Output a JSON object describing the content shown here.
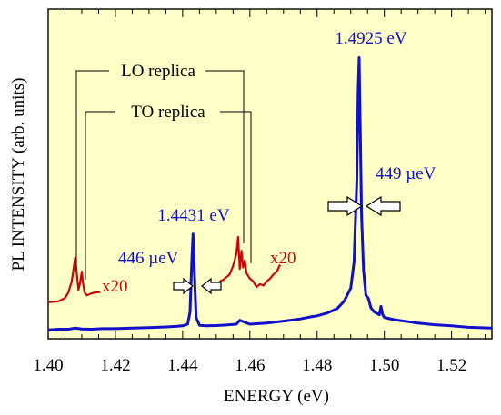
{
  "chart_data": {
    "type": "line",
    "xlabel": "ENERGY (eV)",
    "ylabel": "PL INTENSITY  (arb. units)",
    "xlim": [
      1.4,
      1.532
    ],
    "ylim": [
      0,
      1.0
    ],
    "xticks": [
      "1.40",
      "1.42",
      "1.44",
      "1.46",
      "1.48",
      "1.50",
      "1.52"
    ],
    "xtick_values": [
      1.4,
      1.42,
      1.44,
      1.46,
      1.48,
      1.5,
      1.52
    ],
    "grid": false,
    "series": [
      {
        "color": "#1010c8",
        "x": [
          1.4,
          1.403,
          1.406,
          1.408,
          1.41,
          1.413,
          1.416,
          1.42,
          1.425,
          1.43,
          1.435,
          1.438,
          1.44,
          1.4415,
          1.4422,
          1.4427,
          1.4431,
          1.4435,
          1.444,
          1.445,
          1.447,
          1.45,
          1.453,
          1.456,
          1.457,
          1.46,
          1.465,
          1.47,
          1.475,
          1.478,
          1.48,
          1.483,
          1.486,
          1.488,
          1.49,
          1.491,
          1.4918,
          1.4922,
          1.4925,
          1.4928,
          1.4932,
          1.4938,
          1.4945,
          1.4952,
          1.496,
          1.497,
          1.4985,
          1.499,
          1.4995,
          1.5,
          1.503,
          1.507,
          1.51,
          1.515,
          1.52,
          1.525,
          1.532
        ],
        "y": [
          0.015,
          0.018,
          0.018,
          0.022,
          0.019,
          0.018,
          0.02,
          0.02,
          0.022,
          0.024,
          0.026,
          0.028,
          0.03,
          0.036,
          0.08,
          0.26,
          0.36,
          0.22,
          0.06,
          0.032,
          0.03,
          0.031,
          0.033,
          0.036,
          0.05,
          0.036,
          0.04,
          0.047,
          0.055,
          0.062,
          0.066,
          0.076,
          0.092,
          0.118,
          0.165,
          0.26,
          0.55,
          0.88,
          0.995,
          0.76,
          0.43,
          0.23,
          0.14,
          0.13,
          0.095,
          0.08,
          0.07,
          0.1,
          0.07,
          0.06,
          0.052,
          0.045,
          0.04,
          0.034,
          0.03,
          0.025,
          0.022
        ]
      },
      {
        "color": "#c80808",
        "scale_label": "x20",
        "x": [
          1.4,
          1.403,
          1.405,
          1.406,
          1.407,
          1.4075,
          1.408,
          1.4085,
          1.409,
          1.4095,
          1.41,
          1.4103,
          1.4108,
          1.4115,
          1.4125,
          1.414,
          1.4155
        ],
        "y": [
          0.115,
          0.118,
          0.13,
          0.15,
          0.19,
          0.23,
          0.275,
          0.22,
          0.16,
          0.185,
          0.225,
          0.19,
          0.15,
          0.14,
          0.145,
          0.15,
          0.152
        ]
      },
      {
        "color": "#c80808",
        "scale_label": "x20",
        "x": [
          1.451,
          1.452,
          1.453,
          1.454,
          1.455,
          1.456,
          1.4565,
          1.457,
          1.4575,
          1.458,
          1.4585,
          1.459,
          1.46,
          1.461,
          1.462,
          1.463,
          1.464,
          1.465,
          1.466,
          1.467,
          1.468,
          1.469
        ],
        "y": [
          0.19,
          0.195,
          0.205,
          0.215,
          0.245,
          0.29,
          0.35,
          0.235,
          0.3,
          0.24,
          0.265,
          0.22,
          0.2,
          0.19,
          0.17,
          0.18,
          0.175,
          0.19,
          0.2,
          0.215,
          0.225,
          0.25
        ]
      }
    ],
    "annotations": {
      "peak_main": "1.4925 eV",
      "fwhm_main": "449 µeV",
      "peak_secondary": "1.4431 eV",
      "fwhm_secondary": "446 µeV",
      "lo_replica": "LO replica",
      "to_replica": "TO replica",
      "scale_left": "x20",
      "scale_right": "x20"
    }
  }
}
